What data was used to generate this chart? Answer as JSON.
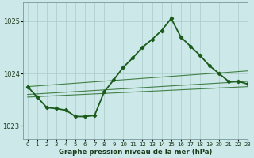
{
  "background_color": "#cce8e8",
  "grid_color": "#aacccc",
  "xlabel": "Graphe pression niveau de la mer (hPa)",
  "ylim": [
    1022.75,
    1025.35
  ],
  "xlim": [
    -0.5,
    23
  ],
  "yticks": [
    1023,
    1024,
    1025
  ],
  "xticks": [
    0,
    1,
    2,
    3,
    4,
    5,
    6,
    7,
    8,
    9,
    10,
    11,
    12,
    13,
    14,
    15,
    16,
    17,
    18,
    19,
    20,
    21,
    22,
    23
  ],
  "series": {
    "flat1": {
      "x": [
        0,
        23
      ],
      "y": [
        1023.75,
        1024.05
      ],
      "color": "#2a6e2a",
      "lw": 0.8
    },
    "flat2": {
      "x": [
        0,
        23
      ],
      "y": [
        1023.6,
        1023.85
      ],
      "color": "#2a6e2a",
      "lw": 0.8
    },
    "flat3": {
      "x": [
        0,
        23
      ],
      "y": [
        1023.55,
        1023.75
      ],
      "color": "#2a6e2a",
      "lw": 0.8
    },
    "line_main": {
      "x": [
        0,
        1,
        2,
        3,
        4,
        5,
        6,
        7,
        8,
        9,
        10,
        11,
        12,
        13,
        14,
        15,
        16,
        17,
        18,
        19,
        20,
        21,
        22,
        23
      ],
      "y": [
        1023.75,
        1023.55,
        1023.35,
        1023.33,
        1023.3,
        1023.18,
        1023.18,
        1023.2,
        1023.65,
        1023.88,
        1024.12,
        1024.3,
        1024.5,
        1024.65,
        1024.82,
        1025.05,
        1024.7,
        1024.52,
        1024.35,
        1024.15,
        1024.0,
        1023.85,
        1023.85,
        1023.8
      ],
      "color": "#1a5a1a",
      "lw": 1.3,
      "marker": "D",
      "ms": 2.2
    }
  }
}
